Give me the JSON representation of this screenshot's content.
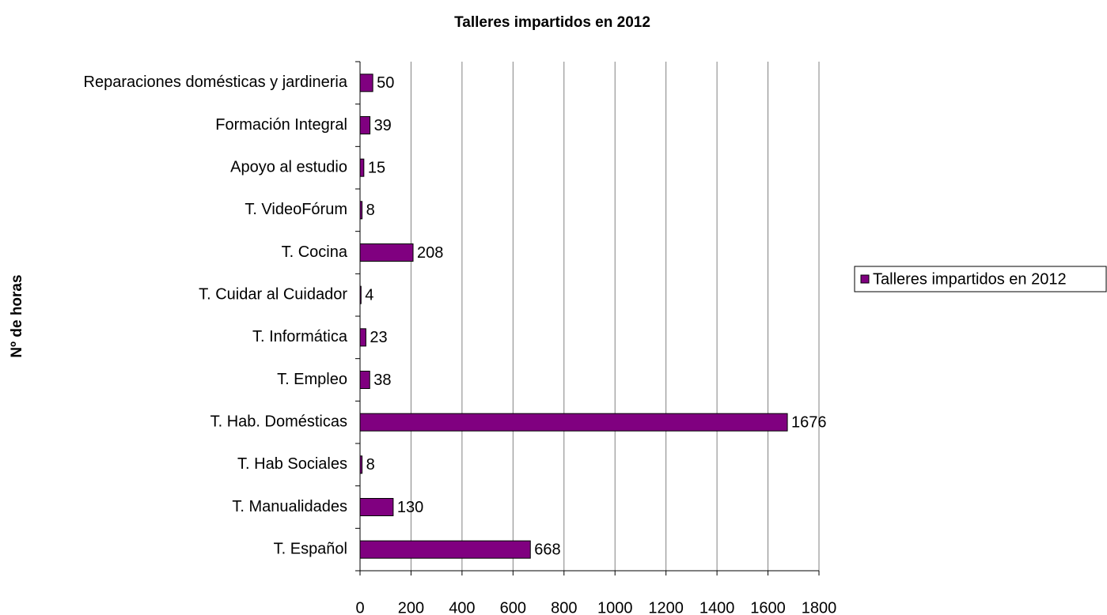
{
  "chart_data": {
    "type": "bar",
    "orientation": "horizontal",
    "title": "Talleres impartidos en 2012",
    "y_label": "Nº de horas",
    "categories": [
      "Reparaciones domésticas y jardineria",
      "Formación Integral",
      "Apoyo al estudio",
      "T. VideoFórum",
      "T. Cocina",
      "T. Cuidar al Cuidador",
      "T. Informática",
      "T. Empleo",
      "T. Hab. Domésticas",
      "T. Hab Sociales",
      "T. Manualidades",
      "T. Español"
    ],
    "series": [
      {
        "name": "Talleres impartidos en 2012",
        "color": "#800080",
        "values": [
          50,
          39,
          15,
          8,
          208,
          4,
          23,
          38,
          1676,
          8,
          130,
          668
        ]
      }
    ],
    "xlim": [
      0,
      1800
    ],
    "xticks": [
      0,
      200,
      400,
      600,
      800,
      1000,
      1200,
      1400,
      1600,
      1800
    ],
    "grid": true,
    "legend": "right"
  }
}
